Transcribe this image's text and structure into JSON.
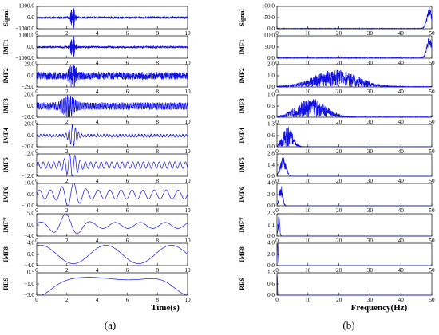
{
  "colors": {
    "signal": "#1010e6",
    "axis": "#000000",
    "background": "#ffffff"
  },
  "panel_labels": [
    "(a)",
    "(b)"
  ],
  "chart_data": [
    {
      "type": "line",
      "panel": "(a)",
      "xlabel": "Time(s)",
      "xlim": [
        0,
        10
      ],
      "xticks": [
        "0",
        "2",
        "4",
        "6",
        "8",
        "10"
      ],
      "grid": false,
      "rows": [
        {
          "name": "Signal",
          "ylim": [
            -1000,
            1000
          ],
          "yticks": [
            "1000.0",
            "0.0",
            "−1000.0"
          ]
        },
        {
          "name": "IMF1",
          "ylim": [
            -1000,
            1000
          ],
          "yticks": [
            "1000.0",
            "0.0",
            "−1000.0"
          ]
        },
        {
          "name": "IMF2",
          "ylim": [
            -29,
            29
          ],
          "yticks": [
            "29.0",
            "0.0",
            "−29.0"
          ]
        },
        {
          "name": "IMF3",
          "ylim": [
            -20,
            20
          ],
          "yticks": [
            "20.0",
            "0.0",
            "−20.0"
          ]
        },
        {
          "name": "IMF4",
          "ylim": [
            -20,
            20
          ],
          "yticks": [
            "20.0",
            "0.0",
            "−20.0"
          ]
        },
        {
          "name": "IMF5",
          "ylim": [
            -12,
            12
          ],
          "yticks": [
            "12.0",
            "0.0",
            "−12.0"
          ]
        },
        {
          "name": "IMF6",
          "ylim": [
            -10,
            10
          ],
          "yticks": [
            "10.0",
            "0.0",
            "−10.0"
          ]
        },
        {
          "name": "IMF7",
          "ylim": [
            -4,
            5
          ],
          "yticks": [
            "5.0",
            "0.0",
            "−4.0"
          ]
        },
        {
          "name": "IMF8",
          "ylim": [
            -4,
            4
          ],
          "yticks": [
            "4.0",
            "0.0",
            "−4.0"
          ]
        },
        {
          "name": "RES",
          "ylim": [
            -3,
            0.5
          ],
          "yticks": [
            "0.5",
            "−1.0",
            "−3.0"
          ]
        }
      ]
    },
    {
      "type": "line",
      "panel": "(b)",
      "xlabel": "Frequency(Hz)",
      "xlim": [
        0,
        50
      ],
      "xticks": [
        "0",
        "10",
        "20",
        "30",
        "40",
        "50"
      ],
      "grid": false,
      "rows": [
        {
          "name": "Signal",
          "ylim": [
            0,
            100
          ],
          "yticks": [
            "100.0",
            "50.0",
            "0.0"
          ]
        },
        {
          "name": "IMF1",
          "ylim": [
            0,
            100
          ],
          "yticks": [
            "100.0",
            "50.0",
            "0.0"
          ]
        },
        {
          "name": "IMF2",
          "ylim": [
            0,
            2
          ],
          "yticks": [
            "2.0",
            "1.0",
            "0.0"
          ]
        },
        {
          "name": "IMF3",
          "ylim": [
            0,
            1
          ],
          "yticks": [
            "1.0",
            "0.5",
            "0.0"
          ]
        },
        {
          "name": "IMF4",
          "ylim": [
            0,
            1.3
          ],
          "yticks": [
            "1.3",
            "0.6",
            "0.0"
          ]
        },
        {
          "name": "IMF5",
          "ylim": [
            0,
            2.8
          ],
          "yticks": [
            "2.8",
            "1.4",
            "0.0"
          ]
        },
        {
          "name": "IMF6",
          "ylim": [
            0,
            4
          ],
          "yticks": [
            "4.0",
            "2.0",
            "0.0"
          ]
        },
        {
          "name": "IMF7",
          "ylim": [
            0,
            2.3
          ],
          "yticks": [
            "2.3",
            "1.1",
            "0.0"
          ]
        },
        {
          "name": "IMF8",
          "ylim": [
            0,
            4
          ],
          "yticks": [
            "4.0",
            "2.0",
            "0.0"
          ]
        },
        {
          "name": "RES",
          "ylim": [
            0,
            1.3
          ],
          "yticks": [
            "1.3",
            "0.6",
            "0.0"
          ]
        }
      ]
    }
  ]
}
